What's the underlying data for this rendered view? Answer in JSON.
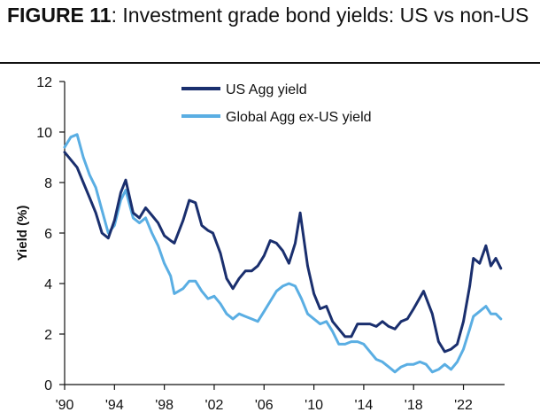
{
  "figure": {
    "label": "FIGURE 11",
    "title": ": Investment grade bond yields: US vs non-US"
  },
  "chart_data": {
    "type": "line",
    "title": "FIGURE 11: Investment grade bond yields: US vs non-US",
    "xlabel": "",
    "ylabel": "Yield (%)",
    "xlim": [
      1990,
      2025.3
    ],
    "ylim": [
      0,
      12
    ],
    "x_ticks": [
      1990,
      1994,
      1998,
      2002,
      2006,
      2010,
      2014,
      2018,
      2022
    ],
    "x_tick_labels": [
      "'90",
      "'94",
      "'98",
      "'02",
      "'06",
      "'10",
      "'14",
      "'18",
      "'22"
    ],
    "y_ticks": [
      0,
      2,
      4,
      6,
      8,
      10,
      12
    ],
    "y_tick_labels": [
      "0",
      "2",
      "4",
      "6",
      "8",
      "10",
      "12"
    ],
    "legend_position": "top-center",
    "grid": false,
    "series": [
      {
        "name": "US Agg yield",
        "color": "#1a2f6e",
        "x": [
          1990.0,
          1990.5,
          1991.0,
          1991.5,
          1992.0,
          1992.5,
          1993.0,
          1993.5,
          1994.0,
          1994.5,
          1994.9,
          1995.5,
          1996.0,
          1996.5,
          1997.0,
          1997.5,
          1998.0,
          1998.5,
          1998.8,
          1999.5,
          2000.0,
          2000.5,
          2001.0,
          2001.5,
          2001.9,
          2002.5,
          2003.0,
          2003.5,
          2004.0,
          2004.5,
          2005.0,
          2005.5,
          2006.0,
          2006.5,
          2007.0,
          2007.5,
          2008.0,
          2008.5,
          2008.9,
          2009.5,
          2010.0,
          2010.5,
          2011.0,
          2011.5,
          2012.0,
          2012.5,
          2013.0,
          2013.5,
          2014.0,
          2014.5,
          2015.0,
          2015.5,
          2016.0,
          2016.5,
          2017.0,
          2017.5,
          2018.0,
          2018.8,
          2019.5,
          2020.0,
          2020.5,
          2021.0,
          2021.5,
          2022.0,
          2022.5,
          2022.8,
          2023.3,
          2023.8,
          2024.2,
          2024.6,
          2025.0
        ],
        "values": [
          9.2,
          8.9,
          8.6,
          8.0,
          7.4,
          6.8,
          6.0,
          5.8,
          6.5,
          7.6,
          8.1,
          6.8,
          6.6,
          7.0,
          6.7,
          6.4,
          5.9,
          5.7,
          5.6,
          6.5,
          7.3,
          7.2,
          6.3,
          6.1,
          6.0,
          5.2,
          4.2,
          3.8,
          4.2,
          4.5,
          4.5,
          4.7,
          5.1,
          5.7,
          5.6,
          5.3,
          4.8,
          5.6,
          6.8,
          4.7,
          3.6,
          3.0,
          3.1,
          2.5,
          2.2,
          1.9,
          1.9,
          2.4,
          2.4,
          2.4,
          2.3,
          2.5,
          2.3,
          2.2,
          2.5,
          2.6,
          3.0,
          3.7,
          2.8,
          1.7,
          1.3,
          1.4,
          1.6,
          2.5,
          3.9,
          5.0,
          4.8,
          5.5,
          4.7,
          5.0,
          4.6
        ]
      },
      {
        "name": "Global Agg ex-US yield",
        "color": "#5aaee3",
        "x": [
          1990.0,
          1990.5,
          1991.0,
          1991.5,
          1992.0,
          1992.5,
          1993.0,
          1993.5,
          1994.0,
          1994.5,
          1994.9,
          1995.5,
          1996.0,
          1996.5,
          1997.0,
          1997.5,
          1998.0,
          1998.5,
          1998.8,
          1999.5,
          2000.0,
          2000.5,
          2001.0,
          2001.5,
          2002.0,
          2002.5,
          2003.0,
          2003.5,
          2004.0,
          2004.5,
          2005.0,
          2005.5,
          2006.0,
          2006.5,
          2007.0,
          2007.5,
          2008.0,
          2008.5,
          2009.0,
          2009.5,
          2010.0,
          2010.5,
          2011.0,
          2011.5,
          2012.0,
          2012.5,
          2013.0,
          2013.5,
          2014.0,
          2014.5,
          2015.0,
          2015.5,
          2016.0,
          2016.5,
          2017.0,
          2017.5,
          2018.0,
          2018.5,
          2019.0,
          2019.5,
          2020.0,
          2020.5,
          2021.0,
          2021.5,
          2022.0,
          2022.5,
          2022.8,
          2023.3,
          2023.8,
          2024.2,
          2024.6,
          2025.0
        ],
        "values": [
          9.4,
          9.8,
          9.9,
          9.0,
          8.3,
          7.8,
          6.9,
          6.0,
          6.3,
          7.3,
          7.7,
          6.6,
          6.4,
          6.6,
          6.0,
          5.5,
          4.8,
          4.3,
          3.6,
          3.8,
          4.1,
          4.1,
          3.7,
          3.4,
          3.5,
          3.2,
          2.8,
          2.6,
          2.8,
          2.7,
          2.6,
          2.5,
          2.9,
          3.3,
          3.7,
          3.9,
          4.0,
          3.9,
          3.4,
          2.8,
          2.6,
          2.4,
          2.5,
          2.1,
          1.6,
          1.6,
          1.7,
          1.7,
          1.6,
          1.3,
          1.0,
          0.9,
          0.7,
          0.5,
          0.7,
          0.8,
          0.8,
          0.9,
          0.8,
          0.5,
          0.6,
          0.8,
          0.6,
          0.9,
          1.4,
          2.2,
          2.7,
          2.9,
          3.1,
          2.8,
          2.8,
          2.6
        ]
      }
    ]
  }
}
